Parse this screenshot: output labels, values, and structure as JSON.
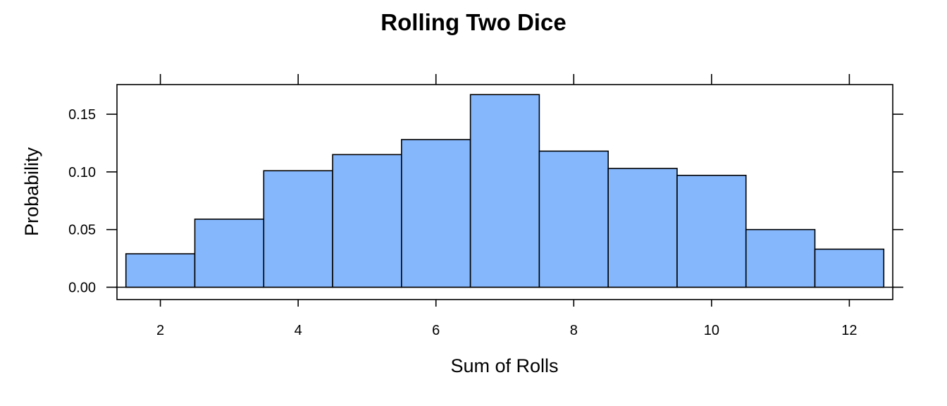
{
  "chart_data": {
    "type": "bar",
    "title": "Rolling Two Dice",
    "xlabel": "Sum of Rolls",
    "ylabel": "Probability",
    "categories": [
      2,
      3,
      4,
      5,
      6,
      7,
      8,
      9,
      10,
      11,
      12
    ],
    "values": [
      0.029,
      0.059,
      0.101,
      0.115,
      0.128,
      0.167,
      0.118,
      0.103,
      0.097,
      0.05,
      0.033
    ],
    "xlim": [
      1.37,
      12.63
    ],
    "ylim": [
      -0.0107,
      0.1757
    ],
    "x_ticks": [
      2,
      4,
      6,
      8,
      10,
      12
    ],
    "x_tick_labels": [
      "2",
      "4",
      "6",
      "8",
      "10",
      "12"
    ],
    "y_ticks": [
      0.0,
      0.05,
      0.1,
      0.15
    ],
    "y_tick_labels": [
      "0.00",
      "0.05",
      "0.10",
      "0.15"
    ],
    "bar_color": "#85b7fd",
    "grid": false
  }
}
